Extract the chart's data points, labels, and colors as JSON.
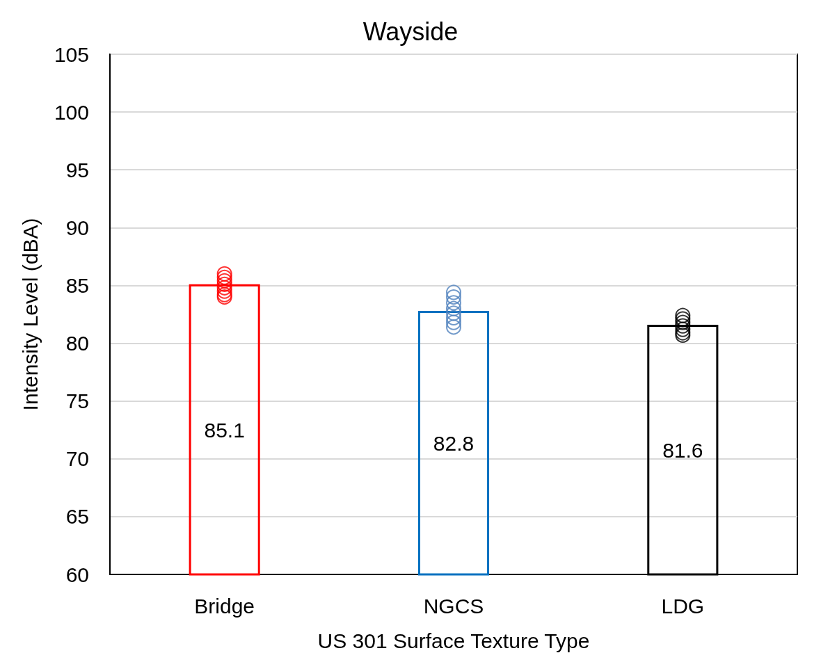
{
  "chart_data": {
    "type": "bar",
    "title": "Wayside",
    "xlabel": "US 301 Surface Texture Type",
    "ylabel": "Intensity Level (dBA)",
    "categories": [
      "Bridge",
      "NGCS",
      "LDG"
    ],
    "series": [
      {
        "values": [
          85.1,
          82.8,
          81.6
        ],
        "colors": [
          "#ff0000",
          "#0070c0",
          "#000000"
        ],
        "data_labels": true
      },
      {
        "type": "scatter",
        "x": [
          "Bridge",
          "Bridge",
          "Bridge",
          "Bridge",
          "Bridge",
          "Bridge",
          "Bridge",
          "Bridge"
        ],
        "values": [
          86.0,
          85.7,
          85.4,
          85.1,
          84.8,
          84.5,
          84.2,
          84.0
        ],
        "color": "#ff0000",
        "marker": "circle"
      },
      {
        "type": "scatter",
        "x": [
          "NGCS",
          "NGCS",
          "NGCS",
          "NGCS",
          "NGCS",
          "NGCS",
          "NGCS",
          "NGCS"
        ],
        "values": [
          84.4,
          84.0,
          83.5,
          83.0,
          82.6,
          82.2,
          81.8,
          81.4
        ],
        "color": "#4f81bd",
        "marker": "circle"
      },
      {
        "type": "scatter",
        "x": [
          "LDG",
          "LDG",
          "LDG",
          "LDG",
          "LDG",
          "LDG",
          "LDG"
        ],
        "values": [
          82.4,
          82.1,
          81.8,
          81.5,
          81.2,
          80.9,
          80.7
        ],
        "color": "#000000",
        "marker": "circle"
      }
    ],
    "ylim": [
      60,
      105
    ],
    "yticks": [
      60,
      65,
      70,
      75,
      80,
      85,
      90,
      95,
      100,
      105
    ],
    "grid": "y"
  }
}
